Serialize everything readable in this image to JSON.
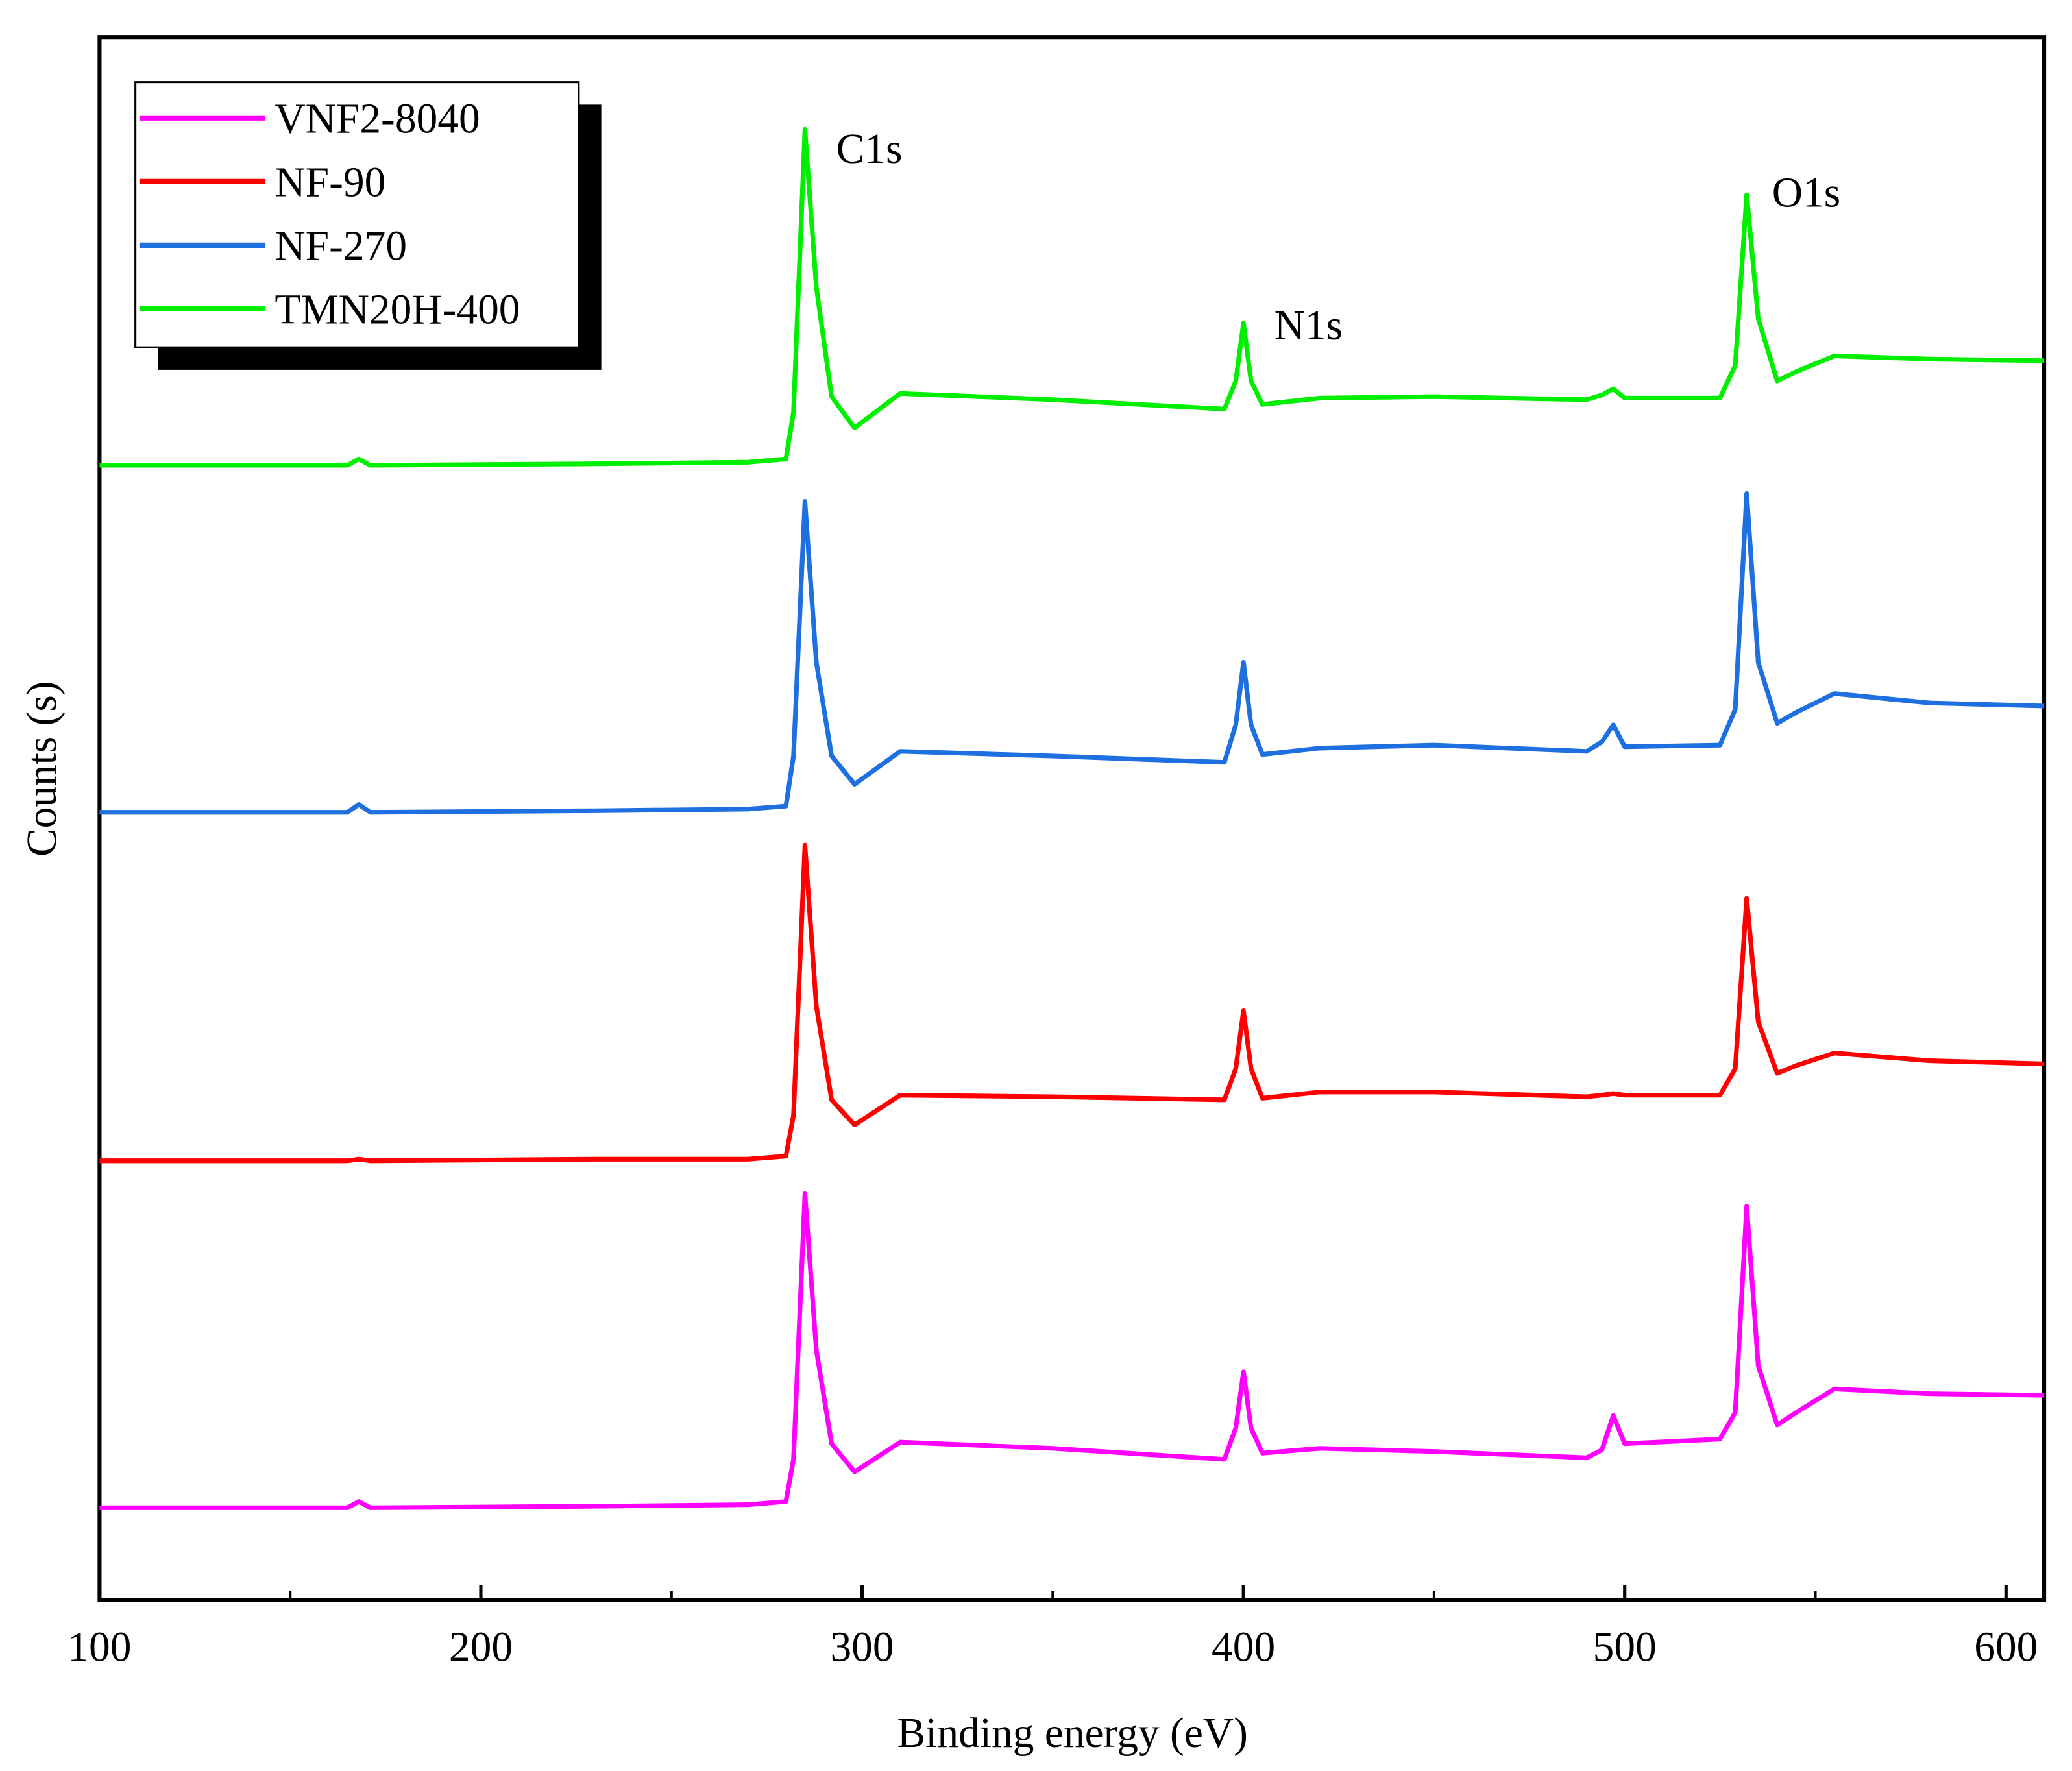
{
  "chart_data": {
    "type": "line",
    "x_label": "Binding energy (eV)",
    "y_label": "Counts (s)",
    "x": [
      100,
      165,
      168,
      171,
      230,
      270,
      280,
      282,
      285,
      288,
      292,
      298,
      310,
      350,
      395,
      398,
      400,
      402,
      405,
      420,
      450,
      490,
      494,
      497,
      500,
      525,
      529,
      532,
      535,
      540,
      545,
      555,
      580,
      610
    ],
    "series": [
      {
        "name": "VNF2-8040",
        "color": "#ff00ff",
        "values": [
          5.9,
          5.9,
          6.3,
          5.9,
          6.0,
          6.1,
          6.3,
          9,
          26.0,
          16,
          10,
          8.2,
          10.1,
          9.7,
          9.0,
          11,
          14.6,
          11,
          9.4,
          9.7,
          9.5,
          9.1,
          9.6,
          11.8,
          10.0,
          10.3,
          12,
          25.2,
          15,
          11.2,
          12.0,
          13.5,
          13.2,
          13.1
        ]
      },
      {
        "name": "NF-90",
        "color": "#ff0000",
        "values": [
          28.1,
          28.1,
          28.2,
          28.1,
          28.2,
          28.2,
          28.4,
          31,
          48.3,
          38,
          32,
          30.4,
          32.3,
          32.2,
          32.0,
          34,
          37.7,
          34,
          32.1,
          32.5,
          32.5,
          32.2,
          32.3,
          32.4,
          32.3,
          32.3,
          34,
          44.9,
          37,
          33.7,
          34.2,
          35.0,
          34.5,
          34.3
        ]
      },
      {
        "name": "NF-270",
        "color": "#1e6fe0",
        "values": [
          50.4,
          50.4,
          50.9,
          50.4,
          50.5,
          50.6,
          50.8,
          54,
          70.3,
          60,
          54,
          52.2,
          54.3,
          54.0,
          53.6,
          56,
          60.0,
          56,
          54.1,
          54.5,
          54.7,
          54.3,
          54.9,
          56.0,
          54.6,
          54.7,
          57,
          70.8,
          60,
          56.1,
          56.8,
          58.0,
          57.4,
          57.2
        ]
      },
      {
        "name": "TMN20H-400",
        "color": "#00ee00",
        "values": [
          72.6,
          72.6,
          73.0,
          72.6,
          72.7,
          72.8,
          73.0,
          76,
          94.1,
          84,
          77,
          75.0,
          77.2,
          76.8,
          76.2,
          78,
          81.7,
          78,
          76.5,
          76.9,
          77.0,
          76.8,
          77.1,
          77.5,
          76.9,
          76.9,
          79,
          89.9,
          82,
          78.0,
          78.6,
          79.6,
          79.4,
          79.3
        ]
      }
    ],
    "annotations": [
      "C1s",
      "N1s",
      "O1s"
    ],
    "xlim": [
      100,
      610
    ],
    "xticks": [
      100,
      200,
      300,
      400,
      500,
      600
    ],
    "ylim": [
      0,
      100
    ],
    "legend": "upper left"
  }
}
